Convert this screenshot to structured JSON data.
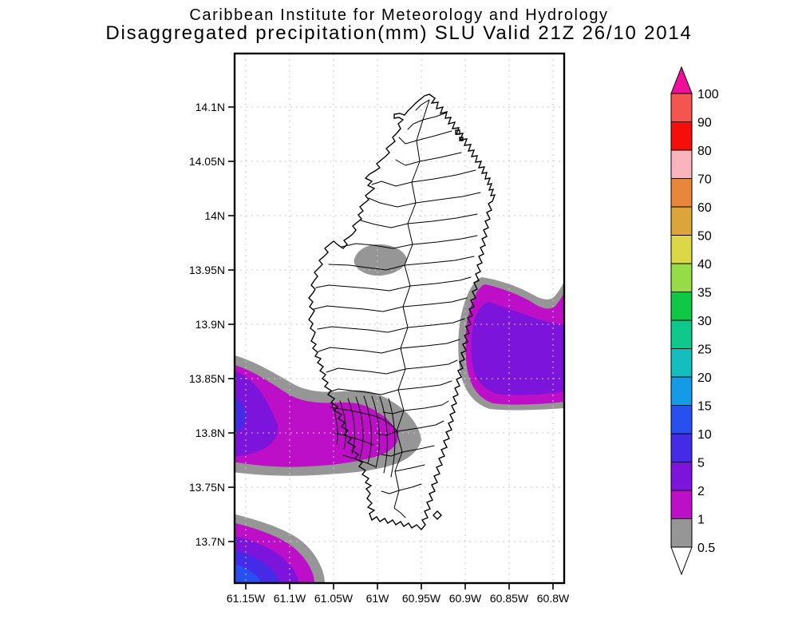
{
  "title": {
    "line1": "Caribbean Institute for Meteorology and Hydrology",
    "line2": "Disaggregated precipitation(mm) SLU Valid 21Z 26/10 2014"
  },
  "palette": {
    "under_0.5": "#ffffff",
    "0.5-1": "#969696",
    "1-2": "#be0fc8",
    "2-5": "#7d14dc",
    "5-10": "#452be8",
    "10-15": "#2850f0",
    "15-20": "#149be8",
    "20-25": "#14bebe",
    "25-30": "#0fc88c",
    "30-35": "#0fc846",
    "35-40": "#96dc46",
    "40-50": "#dcd746",
    "50-60": "#dca53c",
    "60-70": "#e8873c",
    "70-80": "#fab4be",
    "80-90": "#f50f0a",
    "90-100": "#f4554e",
    "over_100": "#f00f9b"
  },
  "chart_data": {
    "type": "filled-contour-map",
    "subject": "Disaggregated precipitation (mm)",
    "region": "SLU (Saint Lucia)",
    "valid_time": "21Z 26/10 2014",
    "source": "Caribbean Institute for Meteorology and Hydrology",
    "grid": true,
    "lat_tick_labels": [
      "14.1N",
      "14.05N",
      "14N",
      "13.95N",
      "13.9N",
      "13.85N",
      "13.8N",
      "13.75N",
      "13.7N"
    ],
    "lon_tick_labels": [
      "61.15W",
      "61.1W",
      "61.05W",
      "61W",
      "60.95W",
      "60.9W",
      "60.85W",
      "60.8W"
    ],
    "lat_range_shown": [
      13.66,
      14.15
    ],
    "lon_range_shown": [
      -61.165,
      -60.785
    ],
    "colorbar": {
      "units": "mm",
      "boundary_labels_low_to_high": [
        "0.5",
        "1",
        "2",
        "5",
        "10",
        "15",
        "20",
        "25",
        "30",
        "35",
        "40",
        "50",
        "60",
        "70",
        "80",
        "90",
        "100"
      ],
      "segment_levels_low_to_high": [
        "0.5-1",
        "1-2",
        "2-5",
        "5-10",
        "10-15",
        "15-20",
        "20-25",
        "25-30",
        "30-35",
        "35-40",
        "40-50",
        "50-60",
        "60-70",
        "70-80",
        "80-90",
        "90-100"
      ],
      "under_arrow_level": "under_0.5",
      "over_arrow_level": "over_100"
    },
    "features": [
      {
        "name": "west-offshore-maximum",
        "location": "west of island, 13.76N-13.87N, reaching over southwest watersheds",
        "bands_present": [
          "0.5-1",
          "1-2",
          "2-5",
          "5-10",
          "10-15"
        ],
        "max_value_mm": "10-15 at west frame edge near 13.82N"
      },
      {
        "name": "east-offshore-maximum",
        "location": "east of island, 13.83N-13.94N, extending past east frame edge",
        "bands_present": [
          "0.5-1",
          "1-2",
          "2-5"
        ],
        "max_value_mm": "2-5"
      },
      {
        "name": "southwest-corner-maximum",
        "location": "bottom-left corner, south of 13.73N near 61.1W-61.17W",
        "bands_present": [
          "0.5-1",
          "1-2",
          "2-5",
          "5-10",
          "10-15"
        ],
        "max_value_mm": "10-15 core in corner"
      },
      {
        "name": "inland-light-patch",
        "location": "on island near 61.05W, 13.96N",
        "bands_present": [
          "0.5-1"
        ],
        "max_value_mm": "0.5-1"
      }
    ]
  }
}
